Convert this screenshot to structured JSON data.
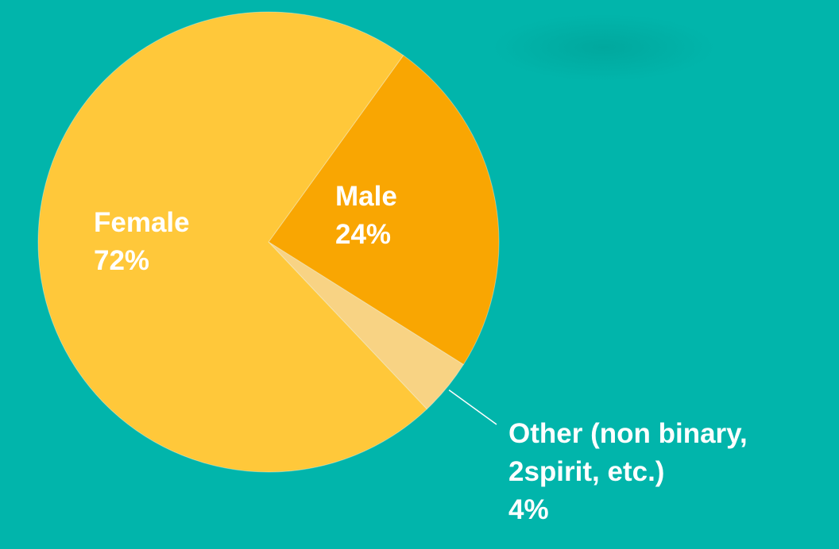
{
  "chart_data": {
    "type": "pie",
    "categories": [
      "Male",
      "Other (non binary, 2spirit, etc.)",
      "Female"
    ],
    "values": [
      24,
      4,
      72
    ],
    "value_labels": [
      "24%",
      "4%",
      "72%"
    ],
    "colors": [
      "#f9a602",
      "#f8d384",
      "#ffc83a"
    ]
  }
}
